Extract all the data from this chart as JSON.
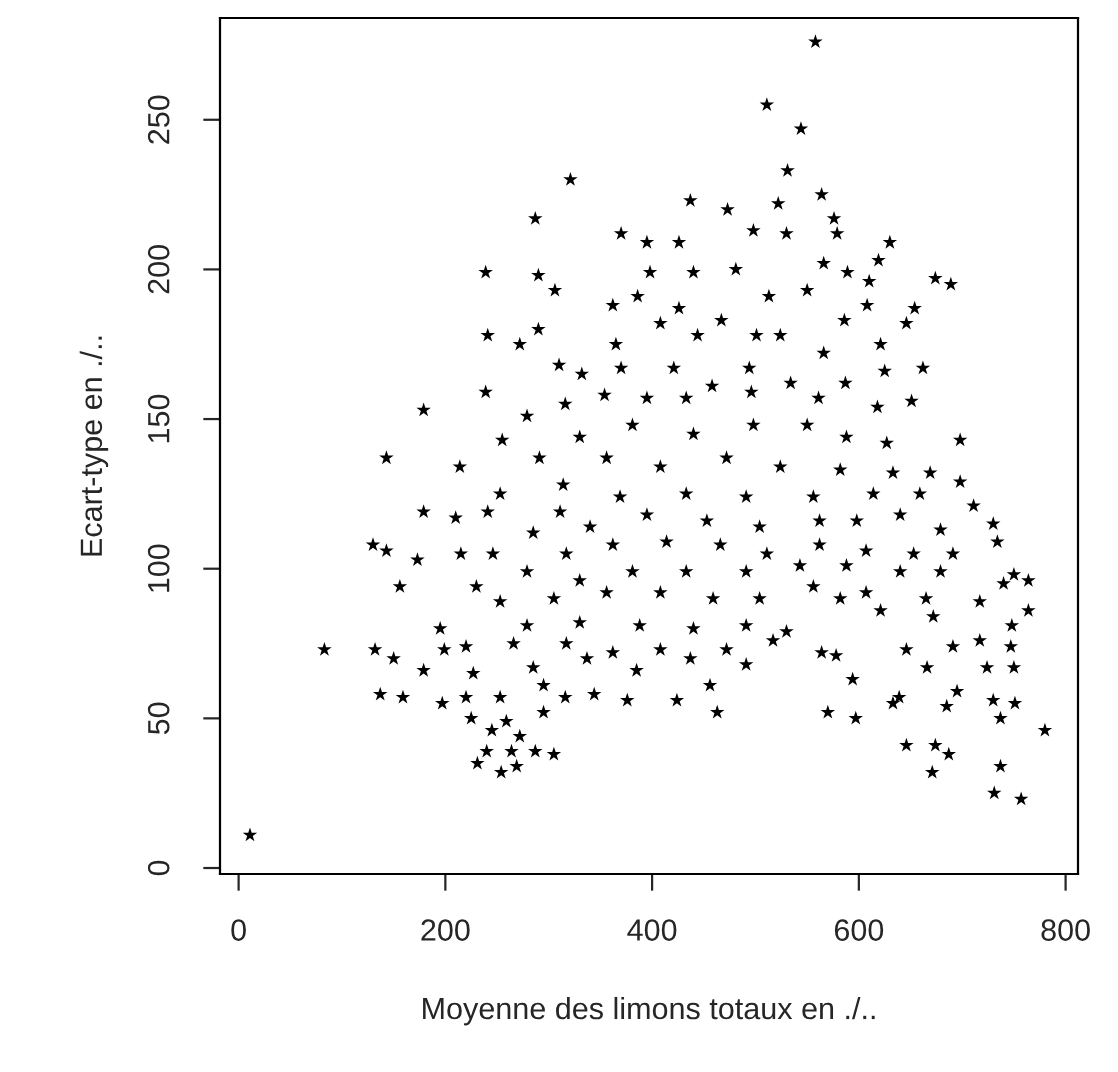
{
  "chart_data": {
    "type": "scatter",
    "xlabel": "Moyenne des limons totaux en ./..",
    "ylabel": "Ecart-type en ./..",
    "xlim": [
      -18,
      812
    ],
    "ylim": [
      -2,
      284
    ],
    "xticks": [
      0,
      200,
      400,
      600,
      800
    ],
    "yticks": [
      0,
      50,
      100,
      150,
      200,
      250
    ],
    "grid": false,
    "marker": "star",
    "series": [
      {
        "color": "#000000",
        "x": [
          11,
          558,
          511,
          544,
          531,
          321,
          564,
          437,
          473,
          287,
          522,
          576,
          579,
          498,
          530,
          370,
          395,
          426,
          630,
          619,
          239,
          290,
          398,
          440,
          481,
          566,
          589,
          610,
          674,
          689,
          306,
          386,
          513,
          550,
          362,
          426,
          608,
          654,
          408,
          467,
          524,
          586,
          646,
          241,
          290,
          272,
          365,
          444,
          501,
          621,
          310,
          370,
          421,
          494,
          566,
          662,
          625,
          332,
          458,
          534,
          587,
          651,
          179,
          239,
          354,
          395,
          496,
          618,
          316,
          433,
          561,
          279,
          255,
          330,
          381,
          440,
          498,
          550,
          588,
          627,
          698,
          143,
          214,
          291,
          356,
          408,
          472,
          524,
          582,
          633,
          669,
          698,
          253,
          314,
          369,
          433,
          491,
          556,
          614,
          659,
          179,
          210,
          241,
          311,
          340,
          395,
          453,
          504,
          562,
          598,
          640,
          711,
          730,
          679,
          130,
          143,
          173,
          215,
          246,
          285,
          317,
          362,
          414,
          466,
          511,
          562,
          607,
          653,
          691,
          734,
          156,
          230,
          279,
          330,
          381,
          433,
          491,
          543,
          588,
          640,
          679,
          750,
          764,
          253,
          305,
          356,
          408,
          459,
          504,
          556,
          607,
          665,
          717,
          764,
          740,
          195,
          279,
          330,
          388,
          440,
          491,
          530,
          582,
          621,
          672,
          717,
          748,
          83,
          132,
          199,
          220,
          266,
          317,
          362,
          408,
          472,
          517,
          564,
          646,
          691,
          747,
          150,
          179,
          227,
          285,
          337,
          385,
          437,
          491,
          578,
          666,
          724,
          750,
          137,
          159,
          197,
          220,
          253,
          295,
          316,
          344,
          376,
          424,
          456,
          594,
          639,
          695,
          730,
          751,
          225,
          259,
          295,
          463,
          570,
          597,
          633,
          685,
          737,
          780,
          245,
          272,
          231,
          240,
          264,
          254,
          269,
          287,
          305,
          646,
          674,
          687,
          671,
          737,
          731,
          757
        ],
        "values": [
          11,
          276,
          255,
          247,
          233,
          230,
          225,
          223,
          220,
          217,
          222,
          217,
          212,
          213,
          212,
          212,
          209,
          209,
          209,
          203,
          199,
          198,
          199,
          199,
          200,
          202,
          199,
          196,
          197,
          195,
          193,
          191,
          191,
          193,
          188,
          187,
          188,
          187,
          182,
          183,
          178,
          183,
          182,
          178,
          180,
          175,
          175,
          178,
          178,
          175,
          168,
          167,
          167,
          167,
          172,
          167,
          166,
          165,
          161,
          162,
          162,
          156,
          153,
          159,
          158,
          157,
          159,
          154,
          155,
          157,
          157,
          151,
          143,
          144,
          148,
          145,
          148,
          148,
          144,
          142,
          143,
          137,
          134,
          137,
          137,
          134,
          137,
          134,
          133,
          132,
          132,
          129,
          125,
          128,
          124,
          125,
          124,
          124,
          125,
          125,
          119,
          117,
          119,
          119,
          114,
          118,
          116,
          114,
          116,
          116,
          118,
          121,
          115,
          113,
          108,
          106,
          103,
          105,
          105,
          112,
          105,
          108,
          109,
          108,
          105,
          108,
          106,
          105,
          105,
          109,
          94,
          94,
          99,
          96,
          99,
          99,
          99,
          101,
          101,
          99,
          99,
          98,
          96,
          89,
          90,
          92,
          92,
          90,
          90,
          94,
          92,
          90,
          89,
          86,
          95,
          80,
          81,
          82,
          81,
          80,
          81,
          79,
          90,
          86,
          84,
          76,
          81,
          73,
          73,
          73,
          74,
          75,
          75,
          72,
          73,
          73,
          76,
          72,
          73,
          74,
          74,
          70,
          66,
          65,
          67,
          70,
          66,
          70,
          68,
          71,
          67,
          67,
          67,
          58,
          57,
          55,
          57,
          57,
          61,
          57,
          58,
          56,
          56,
          61,
          63,
          57,
          59,
          56,
          55,
          50,
          49,
          52,
          52,
          52,
          50,
          55,
          54,
          50,
          46,
          46,
          44,
          35,
          39,
          39,
          32,
          34,
          39,
          38,
          41,
          41,
          38,
          32,
          34,
          25,
          23
        ]
      }
    ]
  }
}
